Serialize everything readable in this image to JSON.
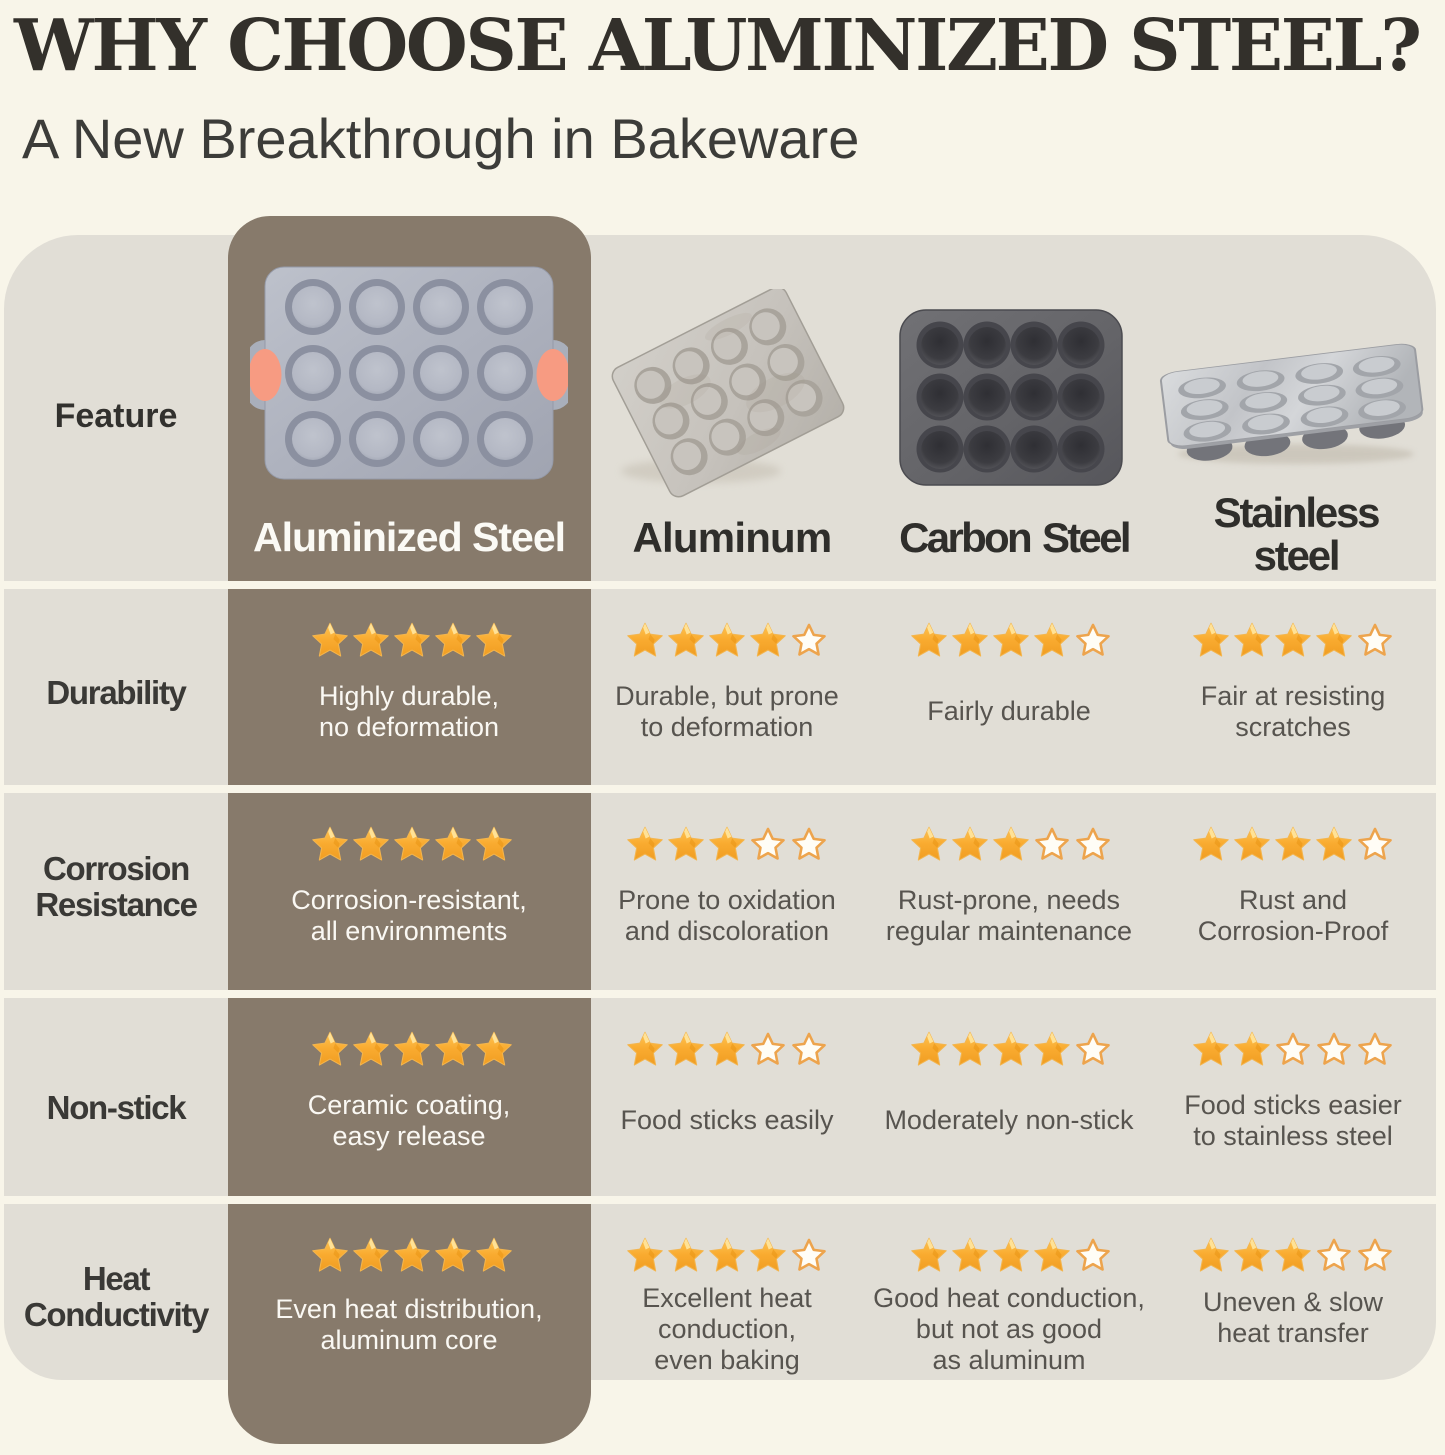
{
  "page": {
    "title": "WHY CHOOSE ALUMINIZED STEEL?",
    "subtitle": "A New Breakthrough in Bakeware"
  },
  "table": {
    "feature_header": "Feature",
    "max_stars": 5,
    "columns": [
      {
        "name": "Aluminized Steel",
        "icon": "aluminized-steel-pan",
        "highlighted": true
      },
      {
        "name": "Aluminum",
        "icon": "aluminum-pan",
        "highlighted": false
      },
      {
        "name": "Carbon Steel",
        "icon": "carbon-steel-pan",
        "highlighted": false
      },
      {
        "name": "Stainless\nsteel",
        "icon": "stainless-steel-pan",
        "highlighted": false
      }
    ],
    "rows": [
      {
        "feature": "Durability",
        "cells": [
          {
            "stars": 5,
            "text": "Highly durable,\nno deformation"
          },
          {
            "stars": 4,
            "text": "Durable, but prone\nto deformation"
          },
          {
            "stars": 4,
            "text": "Fairly durable"
          },
          {
            "stars": 4,
            "text": "Fair at resisting\nscratches"
          }
        ]
      },
      {
        "feature": "Corrosion\nResistance",
        "cells": [
          {
            "stars": 5,
            "text": "Corrosion-resistant,\nall environments"
          },
          {
            "stars": 3,
            "text": "Prone to oxidation\nand discoloration"
          },
          {
            "stars": 3,
            "text": "Rust-prone, needs\nregular maintenance"
          },
          {
            "stars": 4,
            "text": "Rust and\nCorrosion-Proof"
          }
        ]
      },
      {
        "feature": "Non-stick",
        "cells": [
          {
            "stars": 5,
            "text": "Ceramic coating,\neasy release"
          },
          {
            "stars": 3,
            "text": "Food sticks easily"
          },
          {
            "stars": 4,
            "text": "Moderately non-stick"
          },
          {
            "stars": 2,
            "text": "Food sticks easier\nto stainless steel"
          }
        ]
      },
      {
        "feature": "Heat\nConductivity",
        "cells": [
          {
            "stars": 5,
            "text": "Even heat distribution,\naluminum core"
          },
          {
            "stars": 4,
            "text": "Excellent heat\nconduction,\neven baking"
          },
          {
            "stars": 4,
            "text": "Good heat conduction,\nbut not as good\nas aluminum"
          },
          {
            "stars": 3,
            "text": "Uneven & slow\nheat transfer"
          }
        ]
      }
    ]
  },
  "colors": {
    "background": "#f8f5e9",
    "band": "#e1ded6",
    "highlight_column": "#877a6b",
    "title_text": "#33302b",
    "body_text": "#57544f",
    "highlight_text": "#faf8f3",
    "star_fill": "#f8a929",
    "star_outline": "#eda44d",
    "handle_coral": "#f89b80"
  },
  "chart_data": {
    "type": "table",
    "title": "WHY CHOOSE ALUMINIZED STEEL?",
    "subtitle": "A New Breakthrough in Bakeware",
    "columns": [
      "Aluminized Steel",
      "Aluminum",
      "Carbon Steel",
      "Stainless steel"
    ],
    "row_features": [
      "Durability",
      "Corrosion Resistance",
      "Non-stick",
      "Heat Conductivity"
    ],
    "star_ratings": {
      "Durability": [
        5,
        4,
        4,
        4
      ],
      "Corrosion Resistance": [
        5,
        3,
        3,
        4
      ],
      "Non-stick": [
        5,
        3,
        4,
        2
      ],
      "Heat Conductivity": [
        5,
        4,
        4,
        3
      ]
    },
    "max_stars": 5
  }
}
